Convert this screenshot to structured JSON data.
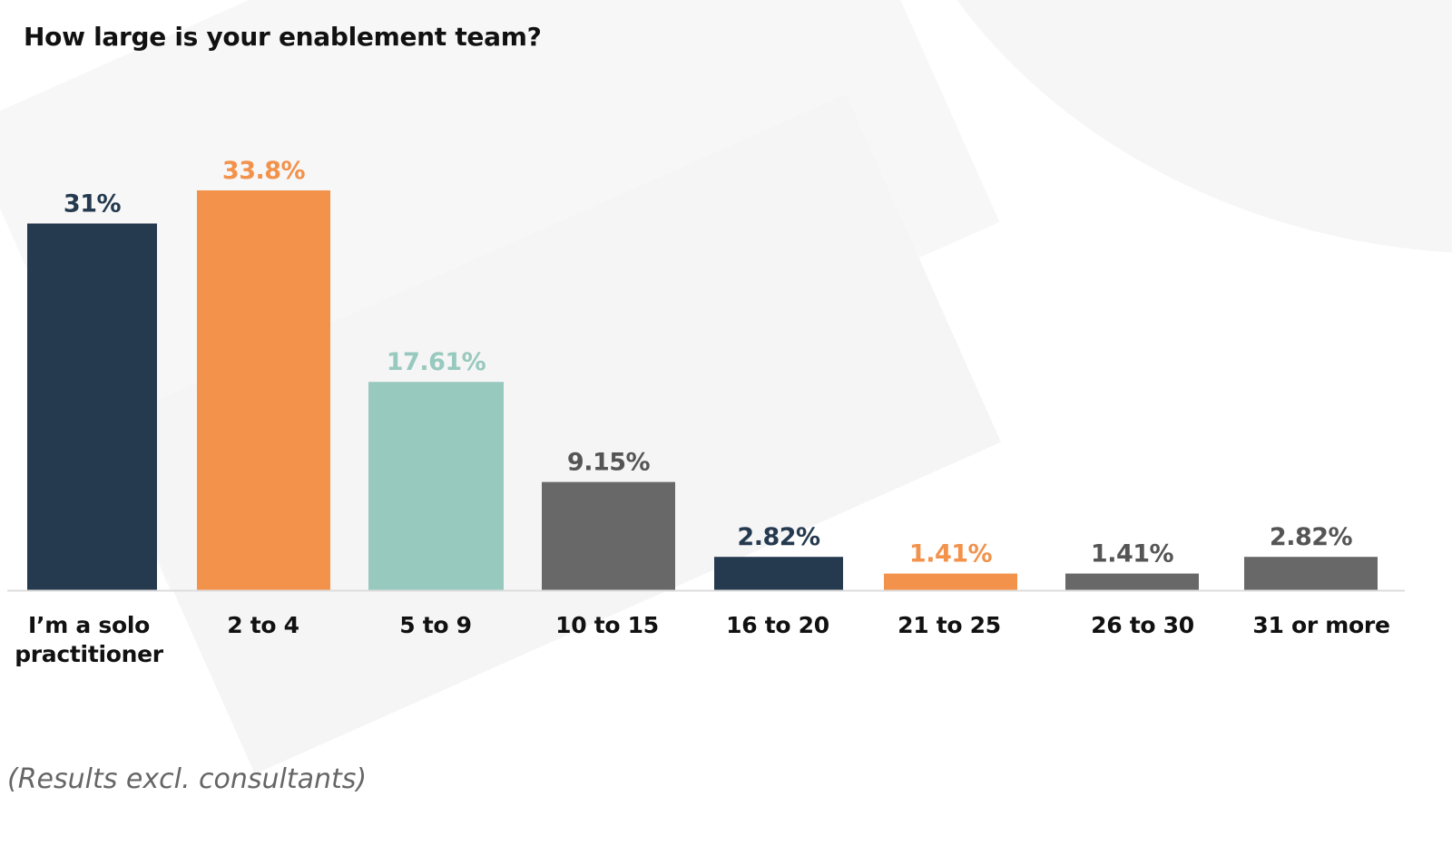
{
  "chart_data": {
    "type": "bar",
    "title": "How large is your enablement team?",
    "note": "(Results excl. consultants)",
    "categories": [
      "I’m a solo practitioner",
      "2 to 4",
      "5 to 9",
      "10 to 15",
      "16 to 20",
      "21 to 25",
      "26 to 30",
      "31 or more"
    ],
    "category_lines": [
      [
        "I’m a solo",
        "practitioner"
      ],
      [
        "2 to 4"
      ],
      [
        "5 to 9"
      ],
      [
        "10 to 15"
      ],
      [
        "16 to 20"
      ],
      [
        "21 to 25"
      ],
      [
        "26 to 30"
      ],
      [
        "31 or more"
      ]
    ],
    "values": [
      31,
      33.8,
      17.61,
      9.15,
      2.82,
      1.41,
      1.41,
      2.82
    ],
    "value_labels": [
      "31%",
      "33.8%",
      "17.61%",
      "9.15%",
      "2.82%",
      "1.41%",
      "1.41%",
      "2.82%"
    ],
    "bar_colors": [
      "#253a4f",
      "#f2924b",
      "#98c9be",
      "#686868",
      "#253a4f",
      "#f2924b",
      "#686868",
      "#686868"
    ],
    "label_colors": [
      "#253a4f",
      "#f2924b",
      "#98c9be",
      "#555555",
      "#253a4f",
      "#f2924b",
      "#555555",
      "#555555"
    ],
    "ylim": [
      0,
      33.8
    ],
    "xlabel": "",
    "ylabel": "",
    "grid": false,
    "legend": "none",
    "axis_color": "#dddddd"
  }
}
